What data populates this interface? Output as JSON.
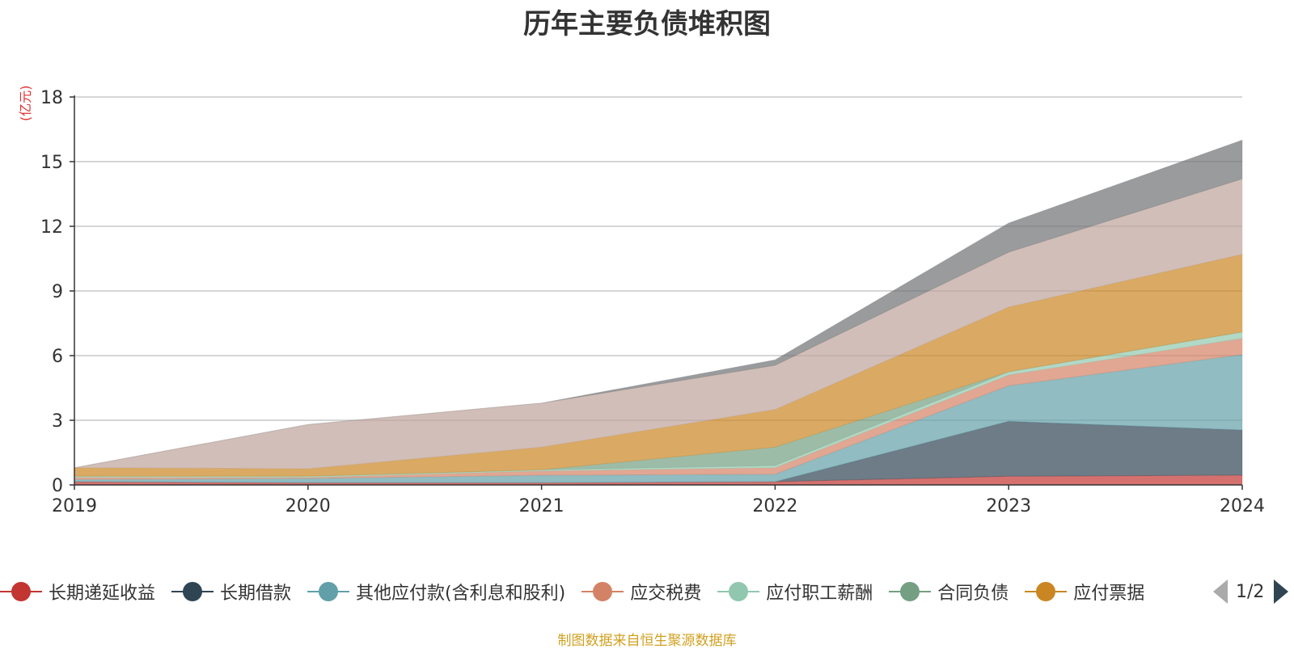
{
  "chart_data": {
    "type": "area",
    "stacked": true,
    "title": "历年主要负债堆积图",
    "ylabel": "(亿元)",
    "xlabel": "",
    "x": [
      "2019",
      "2020",
      "2021",
      "2022",
      "2023",
      "2024"
    ],
    "ylim": [
      0,
      18
    ],
    "yticks": [
      0,
      3,
      6,
      9,
      12,
      15,
      18
    ],
    "grid": true,
    "legend_position": "bottom",
    "series": [
      {
        "name": "长期递延收益",
        "color": "#c23531",
        "values": [
          0.15,
          0.1,
          0.1,
          0.15,
          0.4,
          0.45
        ]
      },
      {
        "name": "长期借款",
        "color": "#2f4554",
        "values": [
          0,
          0,
          0,
          0,
          2.55,
          2.1
        ]
      },
      {
        "name": "其他应付款(含利息和股利)",
        "color": "#61a0a8",
        "values": [
          0.1,
          0.2,
          0.35,
          0.35,
          1.65,
          3.5
        ]
      },
      {
        "name": "应交税费",
        "color": "#d48265",
        "values": [
          0.1,
          0.05,
          0.2,
          0.3,
          0.5,
          0.75
        ]
      },
      {
        "name": "应付职工薪酬",
        "color": "#91c7ae",
        "values": [
          0.05,
          0.05,
          0.05,
          0.1,
          0.15,
          0.3
        ]
      },
      {
        "name": "合同负债",
        "color": "#749f83",
        "values": [
          0,
          0,
          0,
          0.85,
          0,
          0
        ]
      },
      {
        "name": "应付票据",
        "color": "#ca8622",
        "values": [
          0.4,
          0.35,
          1.05,
          1.75,
          3.0,
          3.6
        ]
      },
      {
        "name": "",
        "color": "#bda29a",
        "values": [
          0,
          2.05,
          2.05,
          2.05,
          2.55,
          3.5
        ]
      },
      {
        "name": "",
        "color": "#6e7074",
        "values": [
          0,
          0,
          0,
          0.25,
          1.35,
          1.8
        ]
      }
    ]
  },
  "legend": {
    "visible_labels": [
      "长期递延收益",
      "长期借款",
      "其他应付款(含利息和股利)",
      "应交税费",
      "应付职工薪酬",
      "合同负债",
      "应付票据"
    ],
    "page_indicator": "1/2"
  },
  "source_note": "制图数据来自恒生聚源数据库"
}
